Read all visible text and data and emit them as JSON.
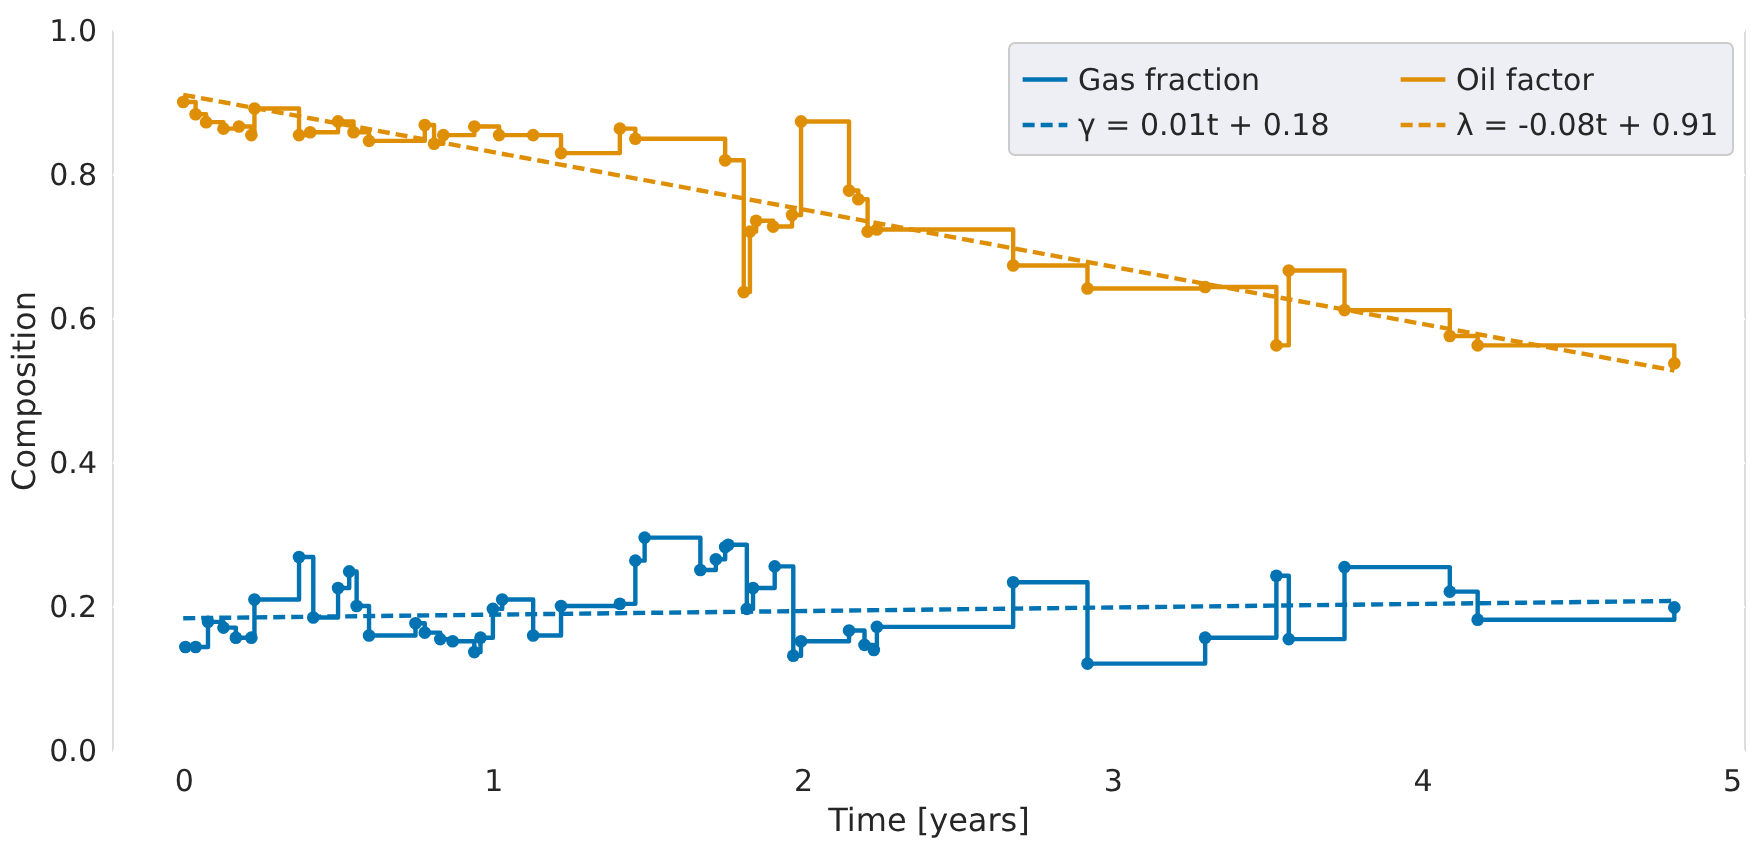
{
  "chart_data": {
    "type": "step",
    "xlabel": "Time [years]",
    "ylabel": "Composition",
    "xlim": [
      -0.23,
      5.04
    ],
    "ylim": [
      0.0,
      1.0
    ],
    "xticks": [
      0,
      1,
      2,
      3,
      4,
      5
    ],
    "yticks": [
      {
        "value": 0,
        "label": "0.0"
      },
      {
        "value": 0.2,
        "label": "0.2"
      },
      {
        "value": 0.4,
        "label": "0.4"
      },
      {
        "value": 0.6,
        "label": "0.6"
      },
      {
        "value": 0.8,
        "label": "0.8"
      },
      {
        "value": 1.0,
        "label": "1.0"
      }
    ],
    "grid": true,
    "legend": "top right",
    "marker": "circle",
    "series": [
      {
        "name": "Gas fraction",
        "color": "#0173b2",
        "line_style": "solid",
        "x": [
          0.007,
          0.04,
          0.08,
          0.13,
          0.17,
          0.22,
          0.23,
          0.374,
          0.42,
          0.5,
          0.536,
          0.56,
          0.6,
          0.75,
          0.78,
          0.83,
          0.87,
          0.94,
          0.96,
          1.0,
          1.03,
          1.13,
          1.22,
          1.41,
          1.46,
          1.49,
          1.67,
          1.72,
          1.75,
          1.76,
          1.82,
          1.84,
          1.91,
          1.97,
          1.995,
          2.15,
          2.2,
          2.23,
          2.24,
          2.68,
          2.92,
          3.3,
          3.53,
          3.57,
          3.75,
          4.09,
          4.18,
          4.815
        ],
        "values": [
          0.143,
          0.143,
          0.178,
          0.17,
          0.156,
          0.156,
          0.209,
          0.268,
          0.184,
          0.225,
          0.248,
          0.2,
          0.159,
          0.176,
          0.163,
          0.154,
          0.151,
          0.136,
          0.156,
          0.196,
          0.209,
          0.159,
          0.2,
          0.203,
          0.263,
          0.295,
          0.25,
          0.265,
          0.282,
          0.285,
          0.196,
          0.225,
          0.255,
          0.131,
          0.151,
          0.166,
          0.146,
          0.139,
          0.171,
          0.233,
          0.12,
          0.156,
          0.242,
          0.154,
          0.254,
          0.22,
          0.181,
          0.198
        ]
      },
      {
        "name": "Oil factor",
        "color": "#de8f05",
        "line_style": "solid",
        "x": [
          0.0,
          0.04,
          0.074,
          0.13,
          0.18,
          0.22,
          0.23,
          0.374,
          0.41,
          0.5,
          0.55,
          0.6,
          0.78,
          0.81,
          0.84,
          0.94,
          1.02,
          1.13,
          1.22,
          1.41,
          1.46,
          1.75,
          1.81,
          1.83,
          1.85,
          1.905,
          1.966,
          1.995,
          2.15,
          2.18,
          2.21,
          2.24,
          2.68,
          2.92,
          3.3,
          3.53,
          3.57,
          3.75,
          4.09,
          4.18,
          4.815
        ],
        "values": [
          0.9,
          0.883,
          0.872,
          0.863,
          0.866,
          0.854,
          0.891,
          0.854,
          0.858,
          0.873,
          0.858,
          0.846,
          0.868,
          0.842,
          0.854,
          0.866,
          0.854,
          0.854,
          0.829,
          0.863,
          0.849,
          0.819,
          0.636,
          0.72,
          0.735,
          0.727,
          0.743,
          0.873,
          0.777,
          0.765,
          0.72,
          0.723,
          0.673,
          0.641,
          0.643,
          0.562,
          0.666,
          0.611,
          0.575,
          0.562,
          0.537
        ]
      },
      {
        "name": "γ = 0.01t + 0.18",
        "type": "line",
        "color": "#0173b2",
        "marker": "none",
        "line_style": "dashed",
        "x": [
          0.0,
          4.815
        ],
        "values": [
          0.183,
          0.207
        ]
      },
      {
        "name": "λ = -0.08t + 0.91",
        "type": "line",
        "color": "#de8f05",
        "marker": "none",
        "line_style": "dashed",
        "x": [
          0.0,
          4.815
        ],
        "values": [
          0.91,
          0.527
        ]
      }
    ]
  }
}
